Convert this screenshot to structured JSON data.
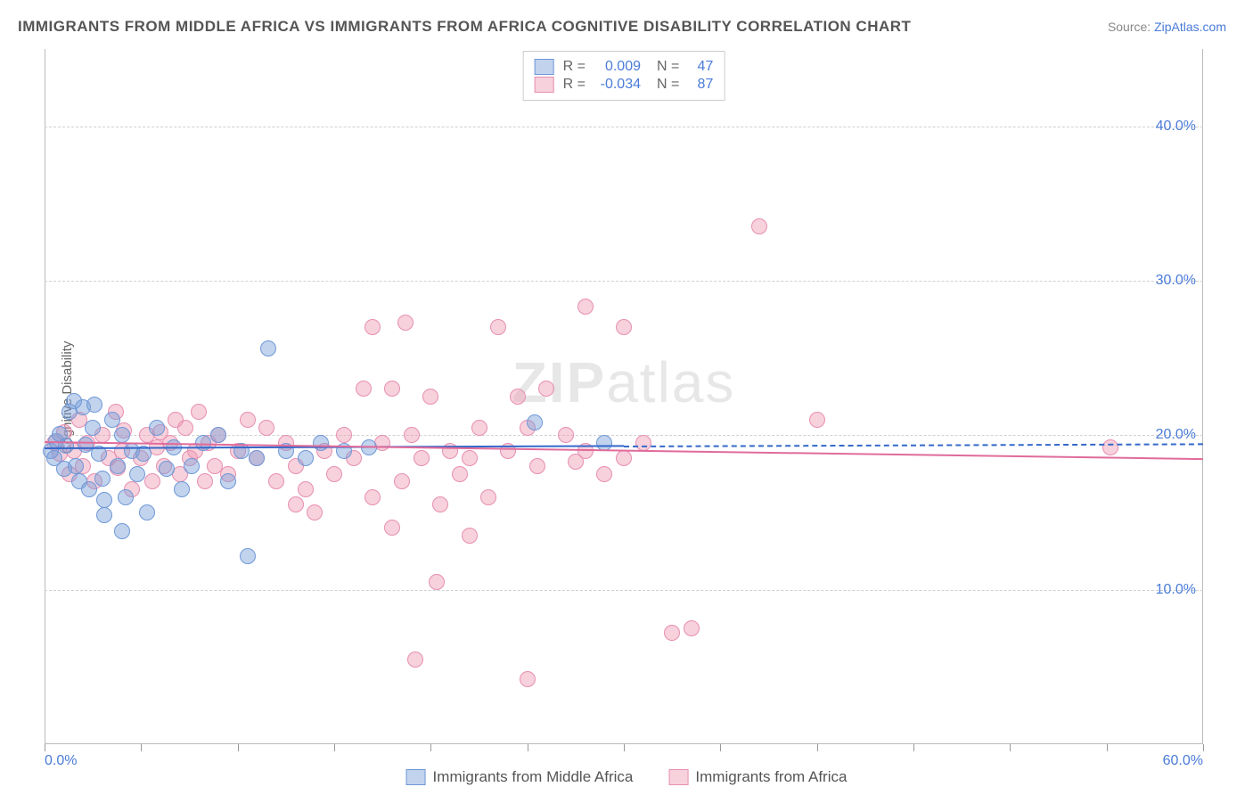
{
  "title": "IMMIGRANTS FROM MIDDLE AFRICA VS IMMIGRANTS FROM AFRICA COGNITIVE DISABILITY CORRELATION CHART",
  "source_prefix": "Source: ",
  "source_link": "ZipAtlas.com",
  "y_label": "Cognitive Disability",
  "watermark": "ZIPatlas",
  "chart": {
    "type": "scatter",
    "xlim": [
      0,
      60
    ],
    "ylim": [
      0,
      45
    ],
    "y_ticks": [
      10,
      20,
      30,
      40
    ],
    "y_tick_labels": [
      "10.0%",
      "20.0%",
      "30.0%",
      "40.0%"
    ],
    "x_ticks": [
      0,
      5,
      10,
      15,
      20,
      25,
      30,
      35,
      40,
      45,
      50,
      55,
      60
    ],
    "x_tick_labels_shown": {
      "0": "0.0%",
      "60": "60.0%"
    },
    "grid_color": "#d0d0d0",
    "axis_color": "#bbbbbb",
    "background": "#ffffff",
    "tick_label_color": "#4a7bd8",
    "tick_label_fontsize": 16
  },
  "series": [
    {
      "name": "Immigrants from Middle Africa",
      "fill": "rgba(119,158,216,0.45)",
      "stroke": "#6f98d8",
      "marker_radius": 9,
      "trend_color": "#3568c9",
      "trend_y_start": 19.2,
      "trend_y_end": 19.5,
      "trend_x_solid_end": 30,
      "R": "0.009",
      "N": "47",
      "points": [
        [
          0.3,
          19.0
        ],
        [
          0.5,
          18.5
        ],
        [
          0.6,
          19.6
        ],
        [
          0.8,
          20.1
        ],
        [
          1.0,
          17.8
        ],
        [
          1.1,
          19.3
        ],
        [
          1.3,
          21.5
        ],
        [
          1.5,
          22.2
        ],
        [
          1.6,
          18.0
        ],
        [
          1.8,
          17.0
        ],
        [
          2.0,
          21.8
        ],
        [
          2.1,
          19.4
        ],
        [
          2.3,
          16.5
        ],
        [
          2.5,
          20.5
        ],
        [
          2.6,
          22.0
        ],
        [
          2.8,
          18.8
        ],
        [
          3.0,
          17.2
        ],
        [
          3.1,
          14.8
        ],
        [
          3.1,
          15.8
        ],
        [
          3.5,
          21.0
        ],
        [
          3.8,
          18.0
        ],
        [
          4.0,
          20.0
        ],
        [
          4.0,
          13.8
        ],
        [
          4.2,
          16.0
        ],
        [
          4.5,
          19.0
        ],
        [
          4.8,
          17.5
        ],
        [
          5.1,
          18.8
        ],
        [
          5.3,
          15.0
        ],
        [
          5.8,
          20.5
        ],
        [
          6.3,
          17.8
        ],
        [
          6.7,
          19.2
        ],
        [
          7.1,
          16.5
        ],
        [
          7.6,
          18.0
        ],
        [
          8.2,
          19.5
        ],
        [
          9.0,
          20.0
        ],
        [
          9.5,
          17.0
        ],
        [
          10.2,
          19.0
        ],
        [
          10.5,
          12.2
        ],
        [
          11.0,
          18.5
        ],
        [
          11.6,
          25.6
        ],
        [
          12.5,
          19.0
        ],
        [
          13.5,
          18.5
        ],
        [
          14.3,
          19.5
        ],
        [
          15.5,
          19.0
        ],
        [
          16.8,
          19.2
        ],
        [
          25.4,
          20.8
        ],
        [
          29.0,
          19.5
        ]
      ]
    },
    {
      "name": "Immigrants from Africa",
      "fill": "rgba(238,153,177,0.45)",
      "stroke": "#e78fb0",
      "marker_radius": 9,
      "trend_color": "#e06b9a",
      "trend_y_start": 19.6,
      "trend_y_end": 18.5,
      "trend_x_solid_end": 60,
      "R": "-0.034",
      "N": "87",
      "points": [
        [
          0.5,
          19.5
        ],
        [
          0.8,
          18.8
        ],
        [
          1.0,
          20.2
        ],
        [
          1.3,
          17.5
        ],
        [
          1.5,
          19.0
        ],
        [
          1.8,
          21.0
        ],
        [
          2.0,
          18.0
        ],
        [
          2.2,
          19.5
        ],
        [
          2.6,
          17.0
        ],
        [
          3.0,
          20.0
        ],
        [
          3.3,
          18.5
        ],
        [
          3.7,
          21.5
        ],
        [
          3.8,
          17.9
        ],
        [
          4.0,
          19.0
        ],
        [
          4.1,
          20.3
        ],
        [
          4.5,
          16.5
        ],
        [
          5.0,
          18.5
        ],
        [
          5.3,
          20.0
        ],
        [
          5.6,
          17.0
        ],
        [
          5.8,
          19.2
        ],
        [
          6.0,
          20.2
        ],
        [
          6.2,
          18.0
        ],
        [
          6.5,
          19.5
        ],
        [
          6.8,
          21.0
        ],
        [
          7.0,
          17.5
        ],
        [
          7.3,
          20.5
        ],
        [
          7.5,
          18.5
        ],
        [
          7.8,
          19.0
        ],
        [
          8.0,
          21.5
        ],
        [
          8.3,
          17.0
        ],
        [
          8.5,
          19.5
        ],
        [
          8.8,
          18.0
        ],
        [
          9.0,
          20.0
        ],
        [
          9.5,
          17.5
        ],
        [
          10.0,
          19.0
        ],
        [
          10.5,
          21.0
        ],
        [
          11.0,
          18.5
        ],
        [
          11.5,
          20.5
        ],
        [
          12.0,
          17.0
        ],
        [
          12.5,
          19.5
        ],
        [
          13.0,
          18.0
        ],
        [
          13.0,
          15.5
        ],
        [
          13.5,
          16.5
        ],
        [
          14.0,
          15.0
        ],
        [
          14.5,
          19.0
        ],
        [
          15.0,
          17.5
        ],
        [
          15.5,
          20.0
        ],
        [
          16.0,
          18.5
        ],
        [
          16.5,
          23.0
        ],
        [
          17.0,
          16.0
        ],
        [
          17.0,
          27.0
        ],
        [
          17.5,
          19.5
        ],
        [
          18.0,
          23.0
        ],
        [
          18.0,
          14.0
        ],
        [
          18.5,
          17.0
        ],
        [
          18.7,
          27.3
        ],
        [
          19.0,
          20.0
        ],
        [
          19.2,
          5.5
        ],
        [
          19.5,
          18.5
        ],
        [
          20.0,
          22.5
        ],
        [
          20.3,
          10.5
        ],
        [
          20.5,
          15.5
        ],
        [
          21.0,
          19.0
        ],
        [
          21.5,
          17.5
        ],
        [
          22.0,
          18.5
        ],
        [
          22.0,
          13.5
        ],
        [
          22.5,
          20.5
        ],
        [
          23.0,
          16.0
        ],
        [
          23.5,
          27.0
        ],
        [
          24.0,
          19.0
        ],
        [
          24.5,
          22.5
        ],
        [
          25.0,
          20.5
        ],
        [
          25.0,
          4.2
        ],
        [
          25.5,
          18.0
        ],
        [
          26.0,
          23.0
        ],
        [
          27.0,
          20.0
        ],
        [
          27.5,
          18.3
        ],
        [
          28.0,
          19.0
        ],
        [
          28.0,
          28.3
        ],
        [
          29.0,
          17.5
        ],
        [
          30.0,
          27.0
        ],
        [
          30.0,
          18.5
        ],
        [
          31.0,
          19.5
        ],
        [
          32.5,
          7.2
        ],
        [
          33.5,
          7.5
        ],
        [
          37.0,
          33.5
        ],
        [
          40.0,
          21.0
        ],
        [
          55.2,
          19.2
        ]
      ]
    }
  ],
  "legend": {
    "r_label": "R =",
    "n_label": "N ="
  }
}
